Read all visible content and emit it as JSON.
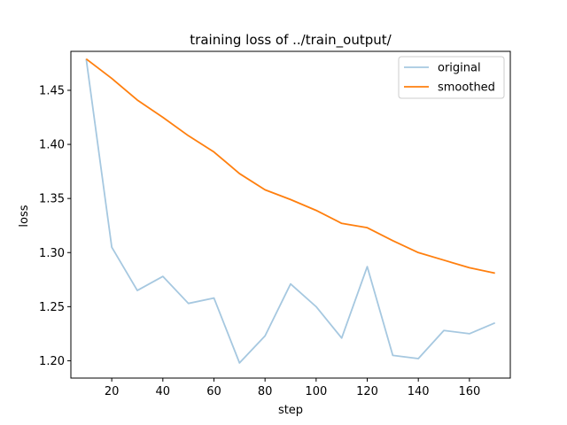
{
  "chart_data": {
    "type": "line",
    "title": "training loss of ../train_output/",
    "xlabel": "step",
    "ylabel": "loss",
    "xlim": [
      4,
      176
    ],
    "ylim": [
      1.184,
      1.486
    ],
    "xticks": [
      20,
      40,
      60,
      80,
      100,
      120,
      140,
      160
    ],
    "yticks": [
      1.2,
      1.25,
      1.3,
      1.35,
      1.4,
      1.45
    ],
    "x": [
      10,
      20,
      30,
      40,
      50,
      60,
      70,
      80,
      90,
      100,
      110,
      120,
      130,
      140,
      150,
      160,
      170
    ],
    "series": [
      {
        "name": "original",
        "color": "#a6c8e0",
        "values": [
          1.479,
          1.305,
          1.265,
          1.278,
          1.253,
          1.258,
          1.198,
          1.223,
          1.271,
          1.25,
          1.221,
          1.287,
          1.205,
          1.202,
          1.228,
          1.225,
          1.235
        ]
      },
      {
        "name": "smoothed",
        "color": "#ff7f0e",
        "values": [
          1.479,
          1.461,
          1.441,
          1.425,
          1.408,
          1.393,
          1.373,
          1.358,
          1.349,
          1.339,
          1.327,
          1.323,
          1.311,
          1.3,
          1.293,
          1.286,
          1.281
        ]
      }
    ],
    "legend": {
      "placement": "upper-right"
    },
    "grid": false
  }
}
